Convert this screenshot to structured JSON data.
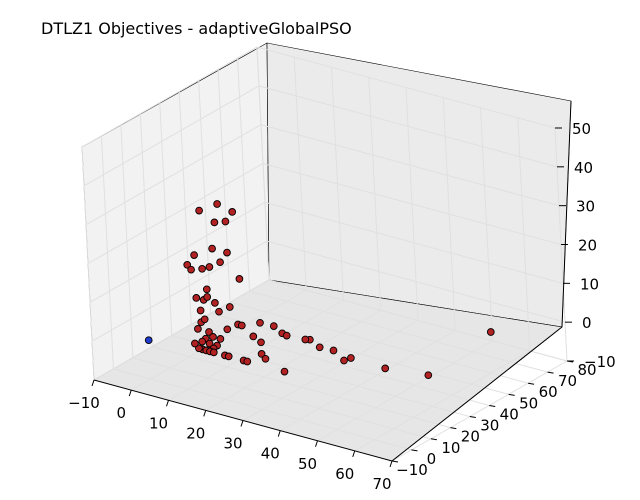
{
  "title": "DTLZ1 Objectives - adaptiveGlobalPSO",
  "chart_data": {
    "type": "scatter",
    "projection": "3d",
    "title": "DTLZ1 Objectives - adaptiveGlobalPSO",
    "xlabel": "",
    "ylabel": "",
    "zlabel": "",
    "xlim": [
      -10,
      70
    ],
    "ylim": [
      -10,
      80
    ],
    "zlim": [
      -10,
      50
    ],
    "x_ticks": [
      "−10",
      "0",
      "10",
      "20",
      "30",
      "40",
      "50",
      "60",
      "70"
    ],
    "y_ticks": [
      "−10",
      "0",
      "10",
      "20",
      "30",
      "40",
      "50",
      "60",
      "70",
      "80"
    ],
    "z_ticks": [
      "−10",
      "0",
      "10",
      "20",
      "30",
      "40",
      "50"
    ],
    "grid": true,
    "series": [
      {
        "color": "#b22222",
        "edgecolor": "#000000",
        "points": [
          [
            15,
            1,
            37
          ],
          [
            20,
            1,
            40
          ],
          [
            22,
            1,
            36
          ],
          [
            19,
            1,
            35
          ],
          [
            24,
            1,
            39
          ],
          [
            13,
            1,
            25
          ],
          [
            11,
            1,
            22
          ],
          [
            12,
            1,
            21
          ],
          [
            15,
            1,
            22
          ],
          [
            17,
            1,
            23
          ],
          [
            18,
            1,
            28
          ],
          [
            20,
            1,
            25
          ],
          [
            22,
            1,
            28
          ],
          [
            25,
            1,
            22
          ],
          [
            13,
            1,
            14
          ],
          [
            15,
            1,
            14
          ],
          [
            16,
            1,
            17
          ],
          [
            16,
            1,
            15
          ],
          [
            18,
            1,
            14
          ],
          [
            19,
            1,
            12
          ],
          [
            14,
            1,
            11
          ],
          [
            22,
            1,
            14
          ],
          [
            14,
            1,
            8
          ],
          [
            15,
            1,
            9
          ],
          [
            13,
            1,
            6
          ],
          [
            15,
            1,
            4
          ],
          [
            16,
            1,
            6
          ],
          [
            14,
            1,
            3
          ],
          [
            16,
            1,
            3
          ],
          [
            17,
            1,
            5
          ],
          [
            18,
            1,
            3
          ],
          [
            14,
            1,
            1
          ],
          [
            15,
            1,
            1
          ],
          [
            13,
            1,
            1
          ],
          [
            17,
            1,
            2
          ],
          [
            19,
            1,
            5
          ],
          [
            16,
            1,
            1
          ],
          [
            17,
            1,
            1
          ],
          [
            12,
            1,
            2
          ],
          [
            20,
            1,
            1
          ],
          [
            21,
            1,
            1
          ],
          [
            21,
            1,
            8
          ],
          [
            24,
            1,
            10
          ],
          [
            25,
            1,
            10
          ],
          [
            28,
            1,
            8
          ],
          [
            30,
            1,
            7
          ],
          [
            25,
            1,
            1
          ],
          [
            26,
            1,
            1
          ],
          [
            30,
            1,
            12
          ],
          [
            30,
            1,
            4
          ],
          [
            31,
            1,
            3
          ],
          [
            36,
            1,
            1
          ],
          [
            31,
            6,
            10
          ],
          [
            31,
            10,
            7
          ],
          [
            30,
            14,
            5
          ],
          [
            33,
            20,
            3
          ],
          [
            41,
            3,
            10
          ],
          [
            41,
            10,
            6
          ],
          [
            42,
            15,
            4
          ],
          [
            42,
            20,
            0
          ],
          [
            45,
            18,
            2
          ],
          [
            52,
            22,
            0
          ],
          [
            62,
            25,
            0
          ],
          [
            66,
            50,
            5
          ]
        ]
      },
      {
        "color": "#1f3ccf",
        "edgecolor": "#000000",
        "points": [
          [
            0,
            0,
            0
          ]
        ]
      }
    ]
  }
}
